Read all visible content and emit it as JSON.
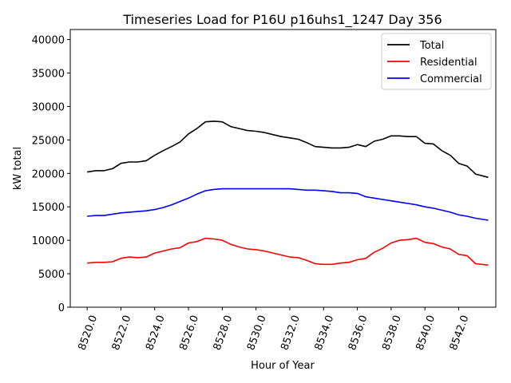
{
  "chart_data": {
    "type": "line",
    "title": "Timeseries Load for P16U p16uhs1_1247  Day 356",
    "xlabel": "Hour of Year",
    "ylabel": "kW total",
    "xlim": [
      8519,
      8544.2
    ],
    "ylim": [
      0,
      41500
    ],
    "x_ticks": [
      8520,
      8522,
      8524,
      8526,
      8528,
      8530,
      8532,
      8534,
      8536,
      8538,
      8540,
      8542
    ],
    "x_tick_labels": [
      "8520.0",
      "8522.0",
      "8524.0",
      "8526.0",
      "8528.0",
      "8530.0",
      "8532.0",
      "8534.0",
      "8536.0",
      "8538.0",
      "8540.0",
      "8542.0"
    ],
    "y_ticks": [
      0,
      5000,
      10000,
      15000,
      20000,
      25000,
      30000,
      35000,
      40000
    ],
    "y_tick_labels": [
      "0",
      "5000",
      "10000",
      "15000",
      "20000",
      "25000",
      "30000",
      "35000",
      "40000"
    ],
    "grid": false,
    "legend_position": "top-right",
    "series": [
      {
        "name": "Total",
        "color": "#000000",
        "x": [
          8520,
          8520.5,
          8521,
          8521.5,
          8522,
          8522.5,
          8523,
          8523.5,
          8524,
          8524.5,
          8525,
          8525.5,
          8526,
          8526.5,
          8527,
          8527.5,
          8528,
          8528.5,
          8529,
          8529.5,
          8530,
          8530.5,
          8531,
          8531.5,
          8532,
          8532.5,
          8533,
          8533.5,
          8534,
          8534.5,
          8535,
          8535.5,
          8536,
          8536.5,
          8537,
          8537.5,
          8538,
          8538.5,
          8539,
          8539.5,
          8540,
          8540.5,
          8541,
          8541.5,
          8542,
          8542.5,
          8543,
          8543.75
        ],
        "values": [
          20200,
          20400,
          20400,
          20700,
          21500,
          21700,
          21700,
          21900,
          22700,
          23400,
          24000,
          24700,
          25900,
          26700,
          27700,
          27800,
          27700,
          27000,
          26700,
          26400,
          26300,
          26100,
          25800,
          25500,
          25300,
          25100,
          24600,
          24000,
          23900,
          23800,
          23800,
          23900,
          24300,
          24000,
          24800,
          25100,
          25600,
          25600,
          25500,
          25500,
          24500,
          24400,
          23400,
          22700,
          21500,
          21100,
          19900,
          19400
        ]
      },
      {
        "name": "Residential",
        "color": "#ff0000",
        "x": [
          8520,
          8520.5,
          8521,
          8521.5,
          8522,
          8522.5,
          8523,
          8523.5,
          8524,
          8524.5,
          8525,
          8525.5,
          8526,
          8526.5,
          8527,
          8527.5,
          8528,
          8528.5,
          8529,
          8529.5,
          8530,
          8530.5,
          8531,
          8531.5,
          8532,
          8532.5,
          8533,
          8533.5,
          8534,
          8534.5,
          8535,
          8535.5,
          8536,
          8536.5,
          8537,
          8537.5,
          8538,
          8538.5,
          8539,
          8539.5,
          8540,
          8540.5,
          8541,
          8541.5,
          8542,
          8542.5,
          8543,
          8543.75
        ],
        "values": [
          6600,
          6700,
          6700,
          6800,
          7300,
          7500,
          7400,
          7500,
          8100,
          8400,
          8700,
          8900,
          9600,
          9800,
          10300,
          10200,
          10000,
          9400,
          9000,
          8700,
          8600,
          8400,
          8100,
          7800,
          7500,
          7400,
          7000,
          6500,
          6400,
          6400,
          6600,
          6700,
          7100,
          7300,
          8200,
          8800,
          9600,
          10000,
          10100,
          10300,
          9700,
          9500,
          9000,
          8700,
          7900,
          7700,
          6500,
          6300
        ]
      },
      {
        "name": "Commercial",
        "color": "#0000ff",
        "x": [
          8520,
          8520.5,
          8521,
          8521.5,
          8522,
          8522.5,
          8523,
          8523.5,
          8524,
          8524.5,
          8525,
          8525.5,
          8526,
          8526.5,
          8527,
          8527.5,
          8528,
          8528.5,
          8529,
          8529.5,
          8530,
          8530.5,
          8531,
          8531.5,
          8532,
          8532.5,
          8533,
          8533.5,
          8534,
          8534.5,
          8535,
          8535.5,
          8536,
          8536.5,
          8537,
          8537.5,
          8538,
          8538.5,
          8539,
          8539.5,
          8540,
          8540.5,
          8541,
          8541.5,
          8542,
          8542.5,
          8543,
          8543.75
        ],
        "values": [
          13600,
          13700,
          13700,
          13900,
          14100,
          14200,
          14300,
          14400,
          14600,
          14900,
          15300,
          15800,
          16300,
          16900,
          17400,
          17600,
          17700,
          17700,
          17700,
          17700,
          17700,
          17700,
          17700,
          17700,
          17700,
          17600,
          17500,
          17500,
          17400,
          17300,
          17100,
          17100,
          17000,
          16500,
          16300,
          16100,
          15900,
          15700,
          15500,
          15300,
          15000,
          14800,
          14500,
          14200,
          13800,
          13600,
          13300,
          13000
        ]
      }
    ]
  }
}
